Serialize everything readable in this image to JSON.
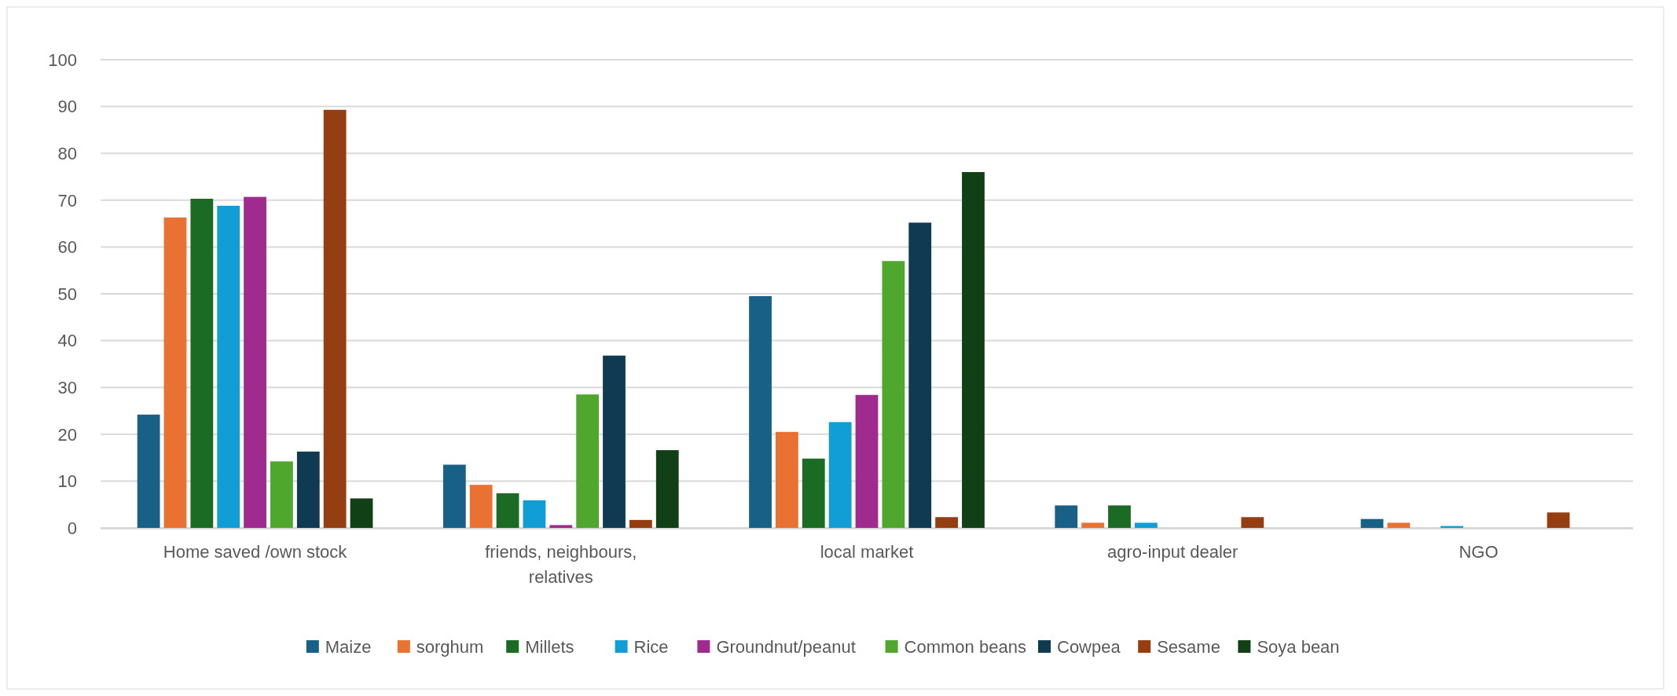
{
  "chart_data": {
    "type": "bar",
    "categories": [
      "Home saved /own stock",
      "friends, neighbours, relatives",
      "local market",
      "agro-input dealer",
      "NGO"
    ],
    "series": [
      {
        "name": "Maize",
        "color": "#196086",
        "values": [
          24.2,
          13.5,
          49.5,
          4.8,
          1.9
        ]
      },
      {
        "name": "sorghum",
        "color": "#e97132",
        "values": [
          66.3,
          9.2,
          20.5,
          1.1,
          1.1
        ]
      },
      {
        "name": "Millets",
        "color": "#1b6b24",
        "values": [
          70.3,
          7.4,
          14.8,
          4.8,
          null
        ]
      },
      {
        "name": "Rice",
        "color": "#119ed6",
        "values": [
          68.8,
          5.9,
          22.6,
          1.1,
          0.4
        ]
      },
      {
        "name": "Groundnut/peanut",
        "color": "#a02b8f",
        "values": [
          70.7,
          0.6,
          28.4,
          null,
          null
        ]
      },
      {
        "name": "Common beans",
        "color": "#4fa72e",
        "values": [
          14.2,
          28.5,
          57.0,
          null,
          null
        ]
      },
      {
        "name": "Cowpea",
        "color": "#0f3a51",
        "values": [
          16.3,
          36.8,
          65.2,
          null,
          null
        ]
      },
      {
        "name": "Sesame",
        "color": "#953e11",
        "values": [
          89.3,
          1.7,
          2.3,
          2.3,
          3.3
        ]
      },
      {
        "name": "Soya bean",
        "color": "#124016",
        "values": [
          6.3,
          16.6,
          76.0,
          null,
          null
        ]
      }
    ],
    "ylim": [
      0,
      100
    ],
    "yticks": [
      0,
      10,
      20,
      30,
      40,
      50,
      60,
      70,
      80,
      90,
      100
    ],
    "grid": "y",
    "legend": "bottom"
  }
}
